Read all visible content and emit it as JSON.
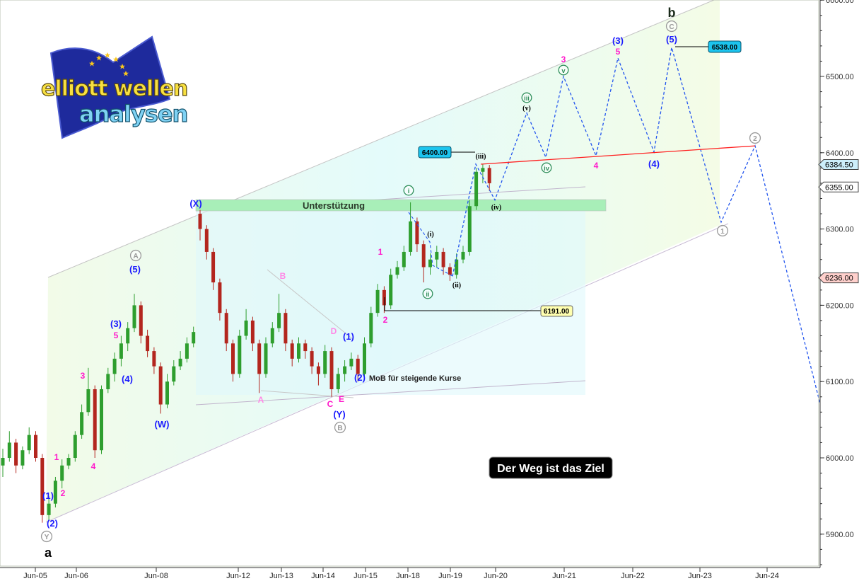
{
  "logo": {
    "line1": "elliott wellen",
    "line2": "analysen"
  },
  "motto": "Der Weg ist das Ziel",
  "colors": {
    "up": "#2e9e2e",
    "down": "#b3261e",
    "wave_blue": "#1a1aff",
    "wave_magenta": "#ff1acb",
    "wave_pink": "#ff88e6",
    "wave_green": "#2f8f5a",
    "wave_gray": "#9a9a9a",
    "projection": "#2255ee",
    "resistance": "#ff2020",
    "support_zone": "#a8efb8"
  },
  "chart_data": {
    "type": "candlestick",
    "title": "",
    "xlabel": "",
    "ylabel": "",
    "ylim": [
      5850,
      6600
    ],
    "y_ticks": [
      "5900.00",
      "6000.00",
      "6100.00",
      "6200.00",
      "6300.00",
      "6400.00",
      "6500.00",
      "6600.00"
    ],
    "x_ticks": [
      "Jun-05",
      "Jun-06",
      "Jun-08",
      "Jun-12",
      "Jun-13",
      "Jun-14",
      "Jun-15",
      "Jun-18",
      "Jun-19",
      "Jun-20",
      "Jun-21",
      "Jun-22",
      "Jun-23",
      "Jun-24"
    ],
    "grid": false,
    "candles_ohlc": [
      [
        5990,
        6012,
        5975,
        6000
      ],
      [
        6000,
        6035,
        5995,
        6020
      ],
      [
        6020,
        6025,
        5980,
        5990
      ],
      [
        5990,
        6015,
        5985,
        6010
      ],
      [
        6010,
        6040,
        6005,
        6030
      ],
      [
        6030,
        6035,
        5995,
        6000
      ],
      [
        6000,
        6005,
        5915,
        5925
      ],
      [
        5925,
        5950,
        5918,
        5940
      ],
      [
        5940,
        5975,
        5935,
        5970
      ],
      [
        5970,
        5998,
        5960,
        5990
      ],
      [
        5990,
        6005,
        5985,
        6000
      ],
      [
        6000,
        6035,
        5995,
        6030
      ],
      [
        6030,
        6070,
        6025,
        6060
      ],
      [
        6060,
        6118,
        6055,
        6090
      ],
      [
        6090,
        6095,
        6000,
        6010
      ],
      [
        6010,
        6095,
        6005,
        6090
      ],
      [
        6090,
        6118,
        6085,
        6110
      ],
      [
        6110,
        6138,
        6100,
        6130
      ],
      [
        6130,
        6160,
        6120,
        6150
      ],
      [
        6150,
        6178,
        6140,
        6170
      ],
      [
        6170,
        6215,
        6165,
        6200
      ],
      [
        6200,
        6205,
        6150,
        6160
      ],
      [
        6160,
        6168,
        6132,
        6140
      ],
      [
        6140,
        6145,
        6110,
        6120
      ],
      [
        6120,
        6125,
        6058,
        6070
      ],
      [
        6070,
        6110,
        6065,
        6100
      ],
      [
        6100,
        6128,
        6095,
        6120
      ],
      [
        6120,
        6140,
        6115,
        6130
      ],
      [
        6130,
        6158,
        6125,
        6150
      ],
      [
        6150,
        6172,
        6145,
        6165
      ],
      [
        6320,
        6325,
        6285,
        6300
      ],
      [
        6300,
        6305,
        6260,
        6270
      ],
      [
        6270,
        6275,
        6220,
        6230
      ],
      [
        6230,
        6235,
        6180,
        6190
      ],
      [
        6190,
        6195,
        6140,
        6150
      ],
      [
        6150,
        6155,
        6100,
        6110
      ],
      [
        6110,
        6168,
        6105,
        6160
      ],
      [
        6160,
        6195,
        6155,
        6180
      ],
      [
        6180,
        6185,
        6140,
        6150
      ],
      [
        6150,
        6155,
        6085,
        6110
      ],
      [
        6110,
        6158,
        6105,
        6150
      ],
      [
        6150,
        6178,
        6145,
        6170
      ],
      [
        6170,
        6215,
        6165,
        6190
      ],
      [
        6190,
        6195,
        6140,
        6150
      ],
      [
        6150,
        6155,
        6120,
        6130
      ],
      [
        6130,
        6158,
        6125,
        6150
      ],
      [
        6150,
        6155,
        6130,
        6140
      ],
      [
        6140,
        6145,
        6110,
        6120
      ],
      [
        6120,
        6125,
        6095,
        6110
      ],
      [
        6110,
        6148,
        6105,
        6140
      ],
      [
        6140,
        6145,
        6080,
        6090
      ],
      [
        6090,
        6118,
        6085,
        6110
      ],
      [
        6110,
        6128,
        6100,
        6120
      ],
      [
        6120,
        6138,
        6115,
        6130
      ],
      [
        6130,
        6135,
        6100,
        6110
      ],
      [
        6110,
        6158,
        6105,
        6150
      ],
      [
        6150,
        6198,
        6145,
        6190
      ],
      [
        6190,
        6228,
        6185,
        6220
      ],
      [
        6220,
        6225,
        6190,
        6200
      ],
      [
        6200,
        6248,
        6195,
        6240
      ],
      [
        6240,
        6258,
        6235,
        6250
      ],
      [
        6250,
        6278,
        6245,
        6270
      ],
      [
        6270,
        6335,
        6265,
        6310
      ],
      [
        6310,
        6315,
        6270,
        6280
      ],
      [
        6280,
        6285,
        6230,
        6250
      ],
      [
        6250,
        6268,
        6240,
        6260
      ],
      [
        6260,
        6278,
        6250,
        6270
      ],
      [
        6270,
        6275,
        6240,
        6250
      ],
      [
        6250,
        6255,
        6232,
        6240
      ],
      [
        6240,
        6268,
        6235,
        6260
      ],
      [
        6260,
        6278,
        6255,
        6270
      ],
      [
        6270,
        6338,
        6265,
        6330
      ],
      [
        6330,
        6380,
        6325,
        6375
      ],
      [
        6375,
        6385,
        6360,
        6380
      ],
      [
        6380,
        6384,
        6350,
        6360
      ]
    ],
    "projection_path": [
      6238,
      6385,
      6338,
      6452,
      6394,
      6500,
      6396,
      6524,
      6401,
      6538,
      6309,
      6409,
      6071
    ],
    "resistance_line": [
      6385,
      6409
    ],
    "support_zone_label": "Unterstützung",
    "mob_label": "MoB für steigende Kurse",
    "price_boxes": [
      "6400.00",
      "6538.00",
      "6191.00"
    ],
    "axis_markers": [
      {
        "value": "6384.50",
        "color": "#cdeefa"
      },
      {
        "value": "6355.00",
        "color": "#ffffff"
      },
      {
        "value": "6236.00",
        "color": "#ffd0cc"
      }
    ],
    "wave_labels": [
      {
        "text": "a",
        "color": "#000000",
        "circled": false
      },
      {
        "text": "Y",
        "color": "#9a9a9a",
        "circled": true
      },
      {
        "text": "(2)",
        "color": "#1a1aff",
        "circled": false
      },
      {
        "text": "(1)",
        "color": "#1a1aff",
        "circled": false
      },
      {
        "text": "1",
        "color": "#ff1acb",
        "circled": false
      },
      {
        "text": "2",
        "color": "#ff1acb",
        "circled": false
      },
      {
        "text": "3",
        "color": "#ff1acb",
        "circled": false
      },
      {
        "text": "4",
        "color": "#ff1acb",
        "circled": false
      },
      {
        "text": "(3)",
        "color": "#1a1aff",
        "circled": false
      },
      {
        "text": "5",
        "color": "#ff1acb",
        "circled": false
      },
      {
        "text": "(4)",
        "color": "#1a1aff",
        "circled": false
      },
      {
        "text": "(5)",
        "color": "#1a1aff",
        "circled": false
      },
      {
        "text": "A",
        "color": "#9a9a9a",
        "circled": true
      },
      {
        "text": "(W)",
        "color": "#1a1aff",
        "circled": false
      },
      {
        "text": "(X)",
        "color": "#1a1aff",
        "circled": false
      },
      {
        "text": "B",
        "color": "#ff88e6",
        "circled": false
      },
      {
        "text": "A",
        "color": "#ff88e6",
        "circled": false
      },
      {
        "text": "D",
        "color": "#ff88e6",
        "circled": false
      },
      {
        "text": "C",
        "color": "#ff1acb",
        "circled": false
      },
      {
        "text": "E",
        "color": "#ff1acb",
        "circled": false
      },
      {
        "text": "(Y)",
        "color": "#1a1aff",
        "circled": false
      },
      {
        "text": "B",
        "color": "#9a9a9a",
        "circled": true
      },
      {
        "text": "(1)",
        "color": "#1a1aff",
        "circled": false
      },
      {
        "text": "(2)",
        "color": "#1a1aff",
        "circled": false
      },
      {
        "text": "1",
        "color": "#ff1acb",
        "circled": false
      },
      {
        "text": "2",
        "color": "#ff1acb",
        "circled": false
      },
      {
        "text": "i",
        "color": "#2f8f5a",
        "circled": true
      },
      {
        "text": "(i)",
        "color": "#000000",
        "circled": false
      },
      {
        "text": "ii",
        "color": "#2f8f5a",
        "circled": true
      },
      {
        "text": "(ii)",
        "color": "#000000",
        "circled": false
      },
      {
        "text": "(iii)",
        "color": "#000000",
        "circled": false
      },
      {
        "text": "(iv)",
        "color": "#000000",
        "circled": false
      },
      {
        "text": "iii",
        "color": "#2f8f5a",
        "circled": true
      },
      {
        "text": "(v)",
        "color": "#000000",
        "circled": false
      },
      {
        "text": "iv",
        "color": "#2f8f5a",
        "circled": true
      },
      {
        "text": "v",
        "color": "#2f8f5a",
        "circled": true
      },
      {
        "text": "3",
        "color": "#ff1acb",
        "circled": false
      },
      {
        "text": "4",
        "color": "#ff1acb",
        "circled": false
      },
      {
        "text": "(3)",
        "color": "#1a1aff",
        "circled": false
      },
      {
        "text": "5",
        "color": "#ff1acb",
        "circled": false
      },
      {
        "text": "(4)",
        "color": "#1a1aff",
        "circled": false
      },
      {
        "text": "b",
        "color": "#1a2a1a",
        "circled": false
      },
      {
        "text": "C",
        "color": "#9a9a9a",
        "circled": true
      },
      {
        "text": "(5)",
        "color": "#1a1aff",
        "circled": false
      },
      {
        "text": "2",
        "color": "#9a9a9a",
        "circled": true
      },
      {
        "text": "1",
        "color": "#9a9a9a",
        "circled": true
      }
    ]
  }
}
